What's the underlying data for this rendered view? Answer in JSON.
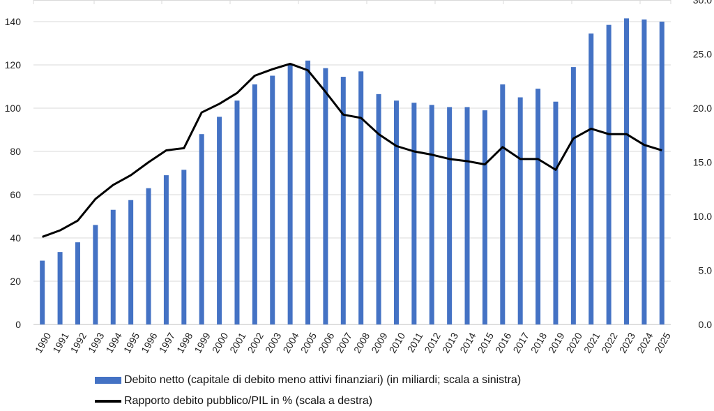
{
  "chart_data": {
    "type": "bar+line",
    "categories": [
      "1990",
      "1991",
      "1992",
      "1993",
      "1994",
      "1995",
      "1996",
      "1997",
      "1998",
      "1999",
      "2000",
      "2001",
      "2002",
      "2003",
      "2004",
      "2005",
      "2006",
      "2007",
      "2008",
      "2009",
      "2010",
      "2011",
      "2012",
      "2013",
      "2014",
      "2015",
      "2016",
      "2017",
      "2018",
      "2019",
      "2020",
      "2021",
      "2022",
      "2023",
      "2024",
      "2025"
    ],
    "series": [
      {
        "name": "Debito netto (capitale di debito meno attivi finanziari) (in miliardi; scala a sinistra)",
        "type": "bar",
        "axis": "left",
        "color": "#4472C4",
        "values": [
          29.5,
          33.5,
          38,
          46,
          53,
          57.5,
          63,
          69,
          71.5,
          88,
          96,
          103.5,
          111,
          115,
          120,
          122,
          118.5,
          114.5,
          117,
          106.5,
          103.5,
          102.5,
          101.5,
          100.5,
          100.5,
          99,
          111,
          105,
          109,
          103,
          119,
          134.5,
          138.5,
          141.5,
          141,
          140
        ]
      },
      {
        "name": "Rapporto debito pubblico/PIL in % (scala a destra)",
        "type": "line",
        "axis": "right",
        "color": "#000000",
        "values": [
          8.1,
          8.7,
          9.6,
          11.6,
          12.9,
          13.8,
          15.0,
          16.1,
          16.3,
          19.6,
          20.4,
          21.4,
          23.0,
          23.6,
          24.1,
          23.5,
          21.5,
          19.4,
          19.1,
          17.6,
          16.5,
          16.0,
          15.7,
          15.3,
          15.1,
          14.8,
          16.4,
          15.3,
          15.3,
          14.3,
          17.2,
          18.1,
          17.6,
          17.6,
          16.6,
          16.1
        ]
      }
    ],
    "y_left": {
      "ylim": [
        0,
        150
      ],
      "ticks": [
        "0",
        "20",
        "40",
        "60",
        "80",
        "100",
        "120",
        "140"
      ],
      "tick_values": [
        0,
        20,
        40,
        60,
        80,
        100,
        120,
        140
      ]
    },
    "y_right": {
      "ylim": [
        0,
        30
      ],
      "ticks": [
        "0.0",
        "5.0",
        "10.0",
        "15.0",
        "20.0",
        "25.0",
        "30.0"
      ],
      "tick_values": [
        0,
        5,
        10,
        15,
        20,
        25,
        30
      ]
    },
    "grid": true,
    "legend_position": "bottom-left"
  },
  "legend": {
    "bar_label": "Debito netto (capitale di debito meno attivi finanziari) (in miliardi; scala a sinistra)",
    "line_label": "Rapporto debito pubblico/PIL in % (scala a destra)"
  },
  "colors": {
    "bar": "#4472C4",
    "line": "#000000",
    "grid": "#D9D9D9",
    "axis": "#BFBFBF"
  }
}
